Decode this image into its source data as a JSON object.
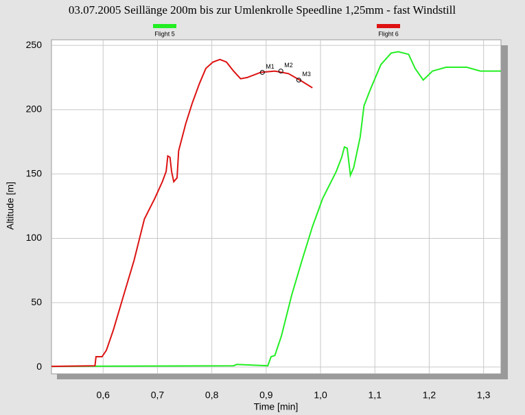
{
  "chart_data": {
    "type": "line",
    "title": "03.07.2005 Seillänge 200m bis zur Umlenkrolle Speedline 1,25mm - fast Windstill",
    "xlabel": "Time [min]",
    "ylabel": "Altitude [m]",
    "xlim": [
      0.505,
      1.332
    ],
    "ylim": [
      -5.3,
      254.3
    ],
    "xticks": [
      {
        "value": 0.6,
        "label": "0,6"
      },
      {
        "value": 0.7,
        "label": "0,7"
      },
      {
        "value": 0.8,
        "label": "0,8"
      },
      {
        "value": 0.9,
        "label": "0,9"
      },
      {
        "value": 1.0,
        "label": "1,0"
      },
      {
        "value": 1.1,
        "label": "1,1"
      },
      {
        "value": 1.2,
        "label": "1,2"
      },
      {
        "value": 1.3,
        "label": "1,3"
      }
    ],
    "yticks": [
      0,
      50,
      100,
      150,
      200,
      250
    ],
    "grid": true,
    "series": [
      {
        "name": "Flight 5",
        "color": "#22ee22",
        "x": [
          0.505,
          0.84,
          0.846,
          0.903,
          0.909,
          0.916,
          0.928,
          0.947,
          0.966,
          0.985,
          1.004,
          1.029,
          1.039,
          1.044,
          1.049,
          1.055,
          1.061,
          1.073,
          1.08,
          1.092,
          1.111,
          1.13,
          1.143,
          1.162,
          1.174,
          1.189,
          1.206,
          1.231,
          1.269,
          1.294,
          1.332
        ],
        "values": [
          0.5,
          1,
          2,
          1,
          8,
          9,
          24,
          56,
          83,
          109,
          131,
          152,
          163,
          171,
          170,
          149,
          155,
          179,
          203,
          216,
          235,
          244,
          245,
          243,
          232,
          223,
          230,
          233,
          233,
          230,
          230
        ]
      },
      {
        "name": "Flight 6",
        "color": "#dd1111",
        "x": [
          0.505,
          0.585,
          0.587,
          0.598,
          0.606,
          0.619,
          0.638,
          0.657,
          0.676,
          0.695,
          0.709,
          0.716,
          0.719,
          0.723,
          0.726,
          0.73,
          0.736,
          0.739,
          0.752,
          0.764,
          0.777,
          0.789,
          0.802,
          0.815,
          0.827,
          0.84,
          0.853,
          0.865,
          0.89,
          0.916,
          0.941,
          0.966,
          0.985
        ],
        "values": [
          0.5,
          1,
          8,
          8,
          13,
          29,
          56,
          83,
          115,
          131,
          144,
          152,
          164,
          163,
          152,
          144,
          147,
          168,
          189,
          205,
          220,
          232,
          237,
          239,
          237,
          230,
          224,
          225,
          229,
          230,
          228,
          222,
          217
        ]
      }
    ],
    "markers": [
      {
        "label": "M1",
        "x": 0.893,
        "y": 229
      },
      {
        "label": "M2",
        "x": 0.927,
        "y": 230
      },
      {
        "label": "M3",
        "x": 0.96,
        "y": 223
      }
    ]
  }
}
